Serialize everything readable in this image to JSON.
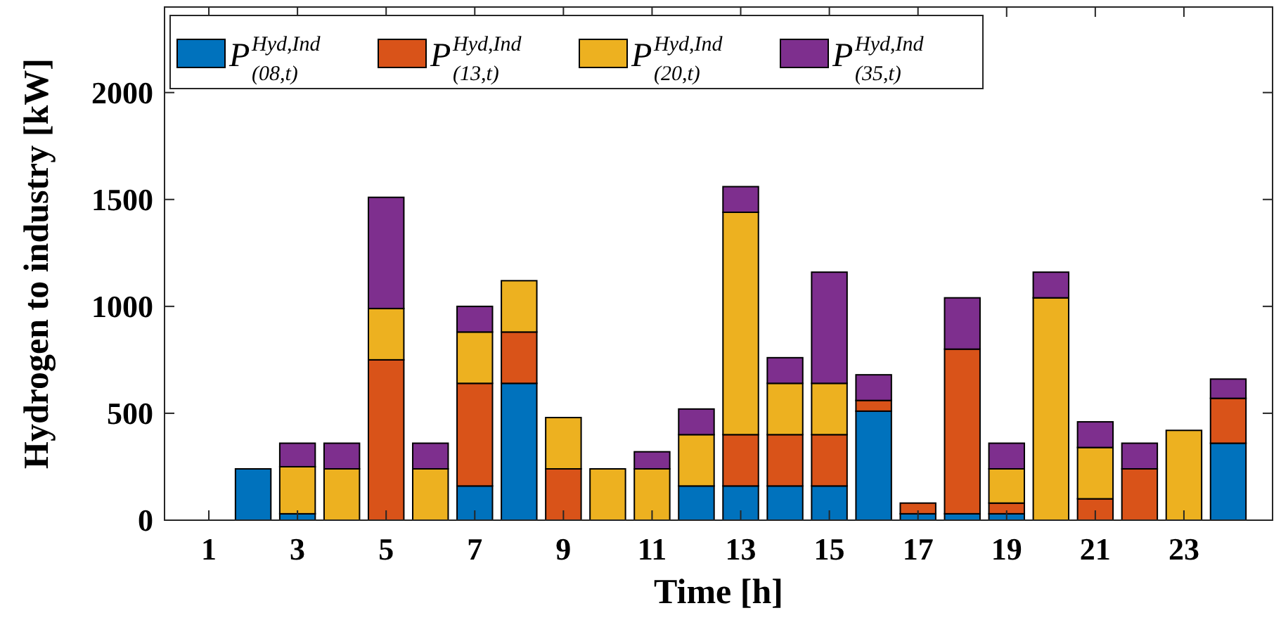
{
  "chart_data": {
    "type": "bar",
    "stacked": true,
    "xlabel": "Time [h]",
    "ylabel": "Hydrogen to industry [kW]",
    "x": [
      1,
      2,
      3,
      4,
      5,
      6,
      7,
      8,
      9,
      10,
      11,
      12,
      13,
      14,
      15,
      16,
      17,
      18,
      19,
      20,
      21,
      22,
      23,
      24
    ],
    "xlim": [
      0,
      25
    ],
    "xticks": [
      1,
      3,
      5,
      7,
      9,
      11,
      13,
      15,
      17,
      19,
      21,
      23
    ],
    "series": [
      {
        "name": "P$^{Hyd,Ind}$$_{(08,t)}$",
        "color": "#0072bd",
        "values": [
          0,
          240,
          30,
          0,
          0,
          0,
          160,
          640,
          0,
          0,
          0,
          160,
          160,
          160,
          160,
          510,
          30,
          30,
          30,
          0,
          0,
          0,
          0,
          360
        ]
      },
      {
        "name": "P$^{Hyd,Ind}$$_{(13,t)}$",
        "color": "#d95319",
        "values": [
          0,
          0,
          0,
          0,
          750,
          0,
          480,
          240,
          240,
          0,
          0,
          0,
          240,
          240,
          240,
          50,
          50,
          770,
          50,
          0,
          100,
          240,
          0,
          210
        ]
      },
      {
        "name": "P$^{Hyd,Ind}$$_{(20,t)}$",
        "color": "#edb120",
        "values": [
          0,
          0,
          220,
          240,
          240,
          240,
          240,
          240,
          240,
          240,
          240,
          240,
          1040,
          240,
          240,
          0,
          0,
          0,
          160,
          1040,
          240,
          0,
          420,
          0
        ]
      },
      {
        "name": "P$^{Hyd,Ind}$$_{(35,t)}$",
        "color": "#7e2f8e",
        "values": [
          0,
          0,
          110,
          120,
          520,
          120,
          120,
          0,
          0,
          0,
          80,
          120,
          120,
          120,
          520,
          120,
          0,
          240,
          120,
          120,
          120,
          120,
          0,
          90
        ]
      }
    ],
    "ylim": [
      0,
      2400
    ],
    "yticks": [
      0,
      500,
      1000,
      1500,
      2000
    ],
    "grid": false,
    "legend": "top left"
  }
}
